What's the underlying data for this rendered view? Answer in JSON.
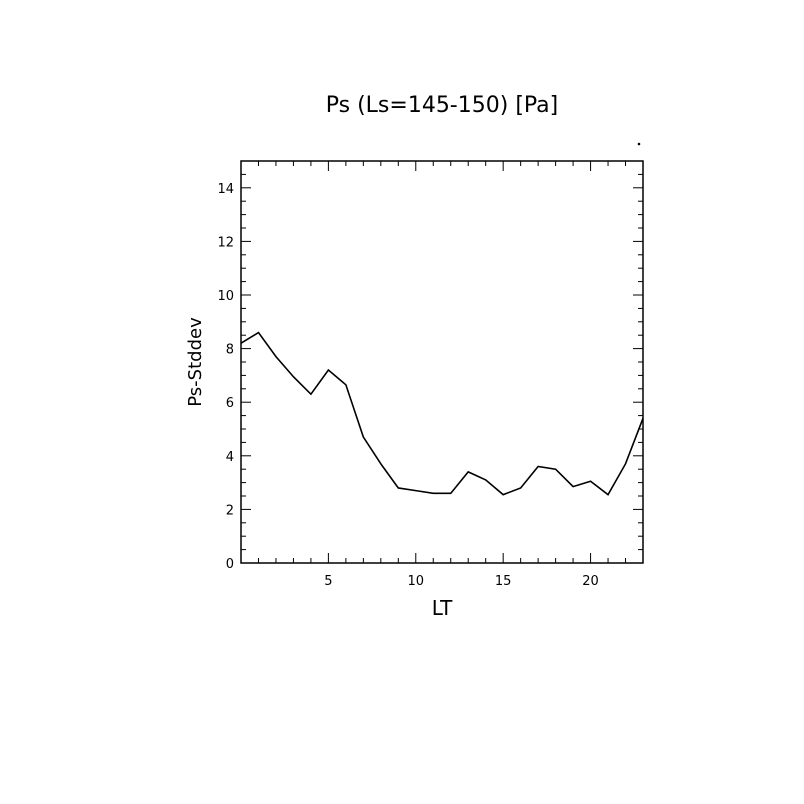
{
  "chart_data": {
    "type": "line",
    "title": "Ps (Ls=145-150) [Pa]",
    "xlabel": "LT",
    "ylabel": "Ps-Stddev",
    "xlim": [
      0,
      23
    ],
    "ylim": [
      0,
      15
    ],
    "xticks": [
      5,
      10,
      15,
      20
    ],
    "yticks": [
      0,
      2,
      4,
      6,
      8,
      10,
      12,
      14
    ],
    "x": [
      0,
      1,
      2,
      3,
      4,
      5,
      6,
      7,
      8,
      9,
      10,
      11,
      12,
      13,
      14,
      15,
      16,
      17,
      18,
      19,
      20,
      21,
      22,
      23
    ],
    "series": [
      {
        "values": [
          8.2,
          8.6,
          7.7,
          6.95,
          6.3,
          7.2,
          6.65,
          4.7,
          3.7,
          2.8,
          2.7,
          2.6,
          2.6,
          3.4,
          3.1,
          2.55,
          2.8,
          3.6,
          3.5,
          2.85,
          3.05,
          2.55,
          3.7,
          5.4
        ]
      }
    ],
    "grid": false,
    "line_color": "#000000"
  }
}
